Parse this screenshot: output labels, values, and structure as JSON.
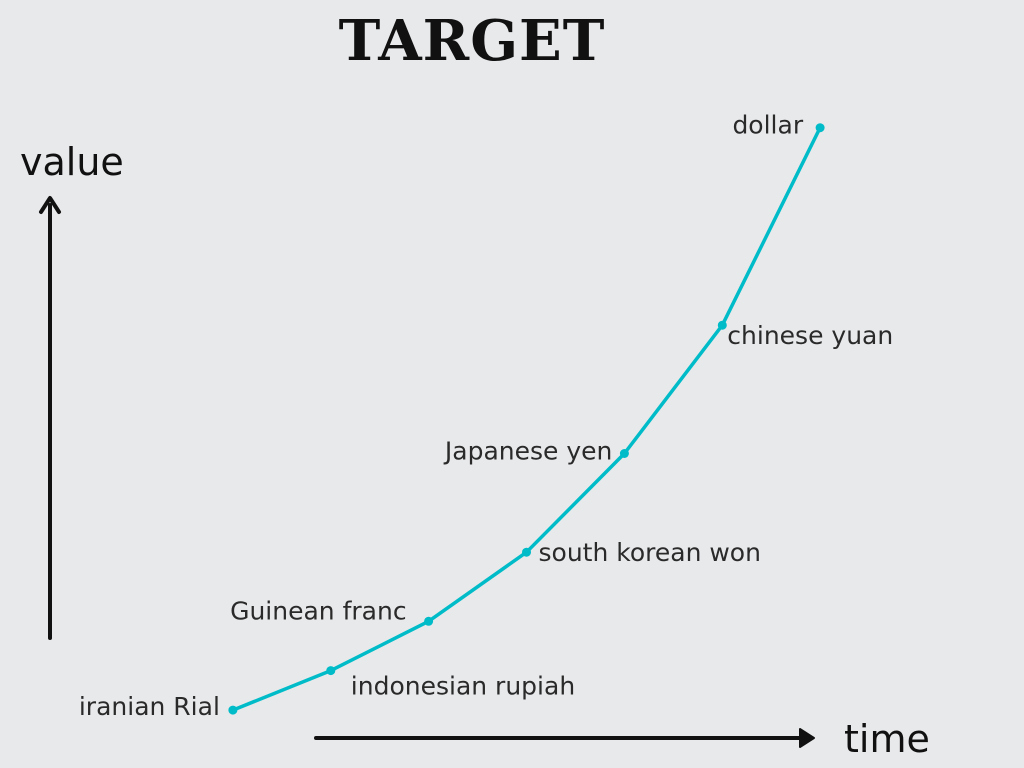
{
  "chart_data": {
    "type": "line",
    "title": "TARGET",
    "xlabel": "time",
    "ylabel": "value",
    "x": [
      1,
      2,
      3,
      4,
      5,
      6,
      7
    ],
    "categories": [
      "iranian Rial",
      "indonesian rupiah",
      "Guinean franc",
      "south korean won",
      "Japanese yen",
      "chinese yuan",
      "dollar"
    ],
    "values": [
      1,
      5,
      10,
      17,
      27,
      40,
      60
    ],
    "xlim": [
      0,
      8
    ],
    "ylim": [
      0,
      62
    ],
    "grid": false,
    "colors": {
      "line": "#00bcc8",
      "axis": "#111111",
      "background": "#e8e9eb"
    }
  }
}
